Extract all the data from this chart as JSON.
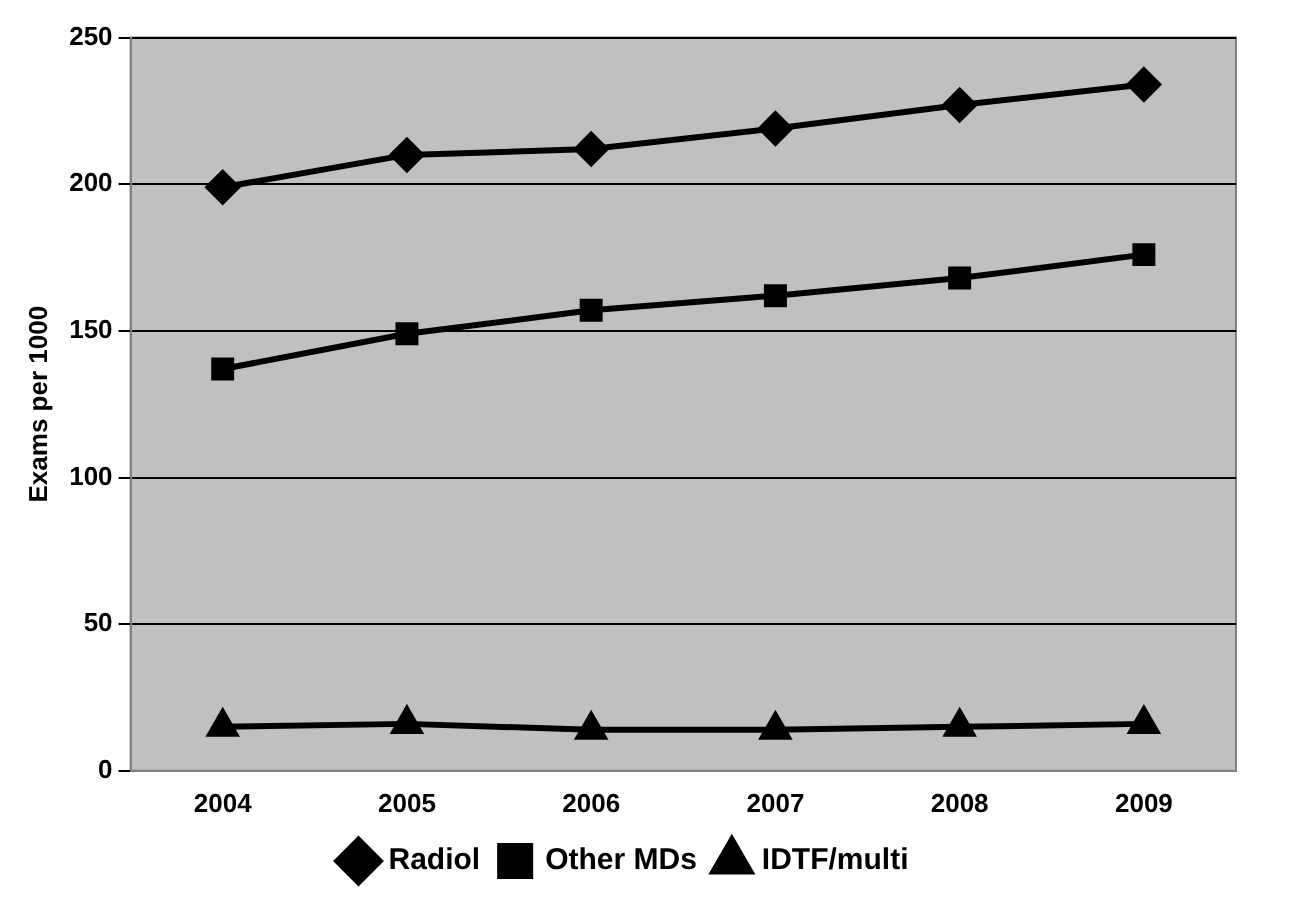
{
  "chart_data": {
    "type": "line",
    "ylabel": "Exams per 1000",
    "categories": [
      "2004",
      "2005",
      "2006",
      "2007",
      "2008",
      "2009"
    ],
    "series": [
      {
        "name": "Radiol",
        "color": "#000000",
        "marker": "diamond",
        "values": [
          199,
          210,
          212,
          219,
          227,
          234
        ]
      },
      {
        "name": "Other MDs",
        "color": "#000000",
        "marker": "square",
        "values": [
          137,
          149,
          157,
          162,
          168,
          176
        ]
      },
      {
        "name": "IDTF/multi",
        "color": "#000000",
        "marker": "triangle",
        "values": [
          15,
          16,
          14,
          14,
          15,
          16
        ]
      }
    ],
    "ylim": [
      0,
      250
    ],
    "yticks": [
      0,
      50,
      100,
      150,
      200,
      250
    ],
    "grid": "y",
    "legend": "bottom",
    "line_style": "solid"
  }
}
